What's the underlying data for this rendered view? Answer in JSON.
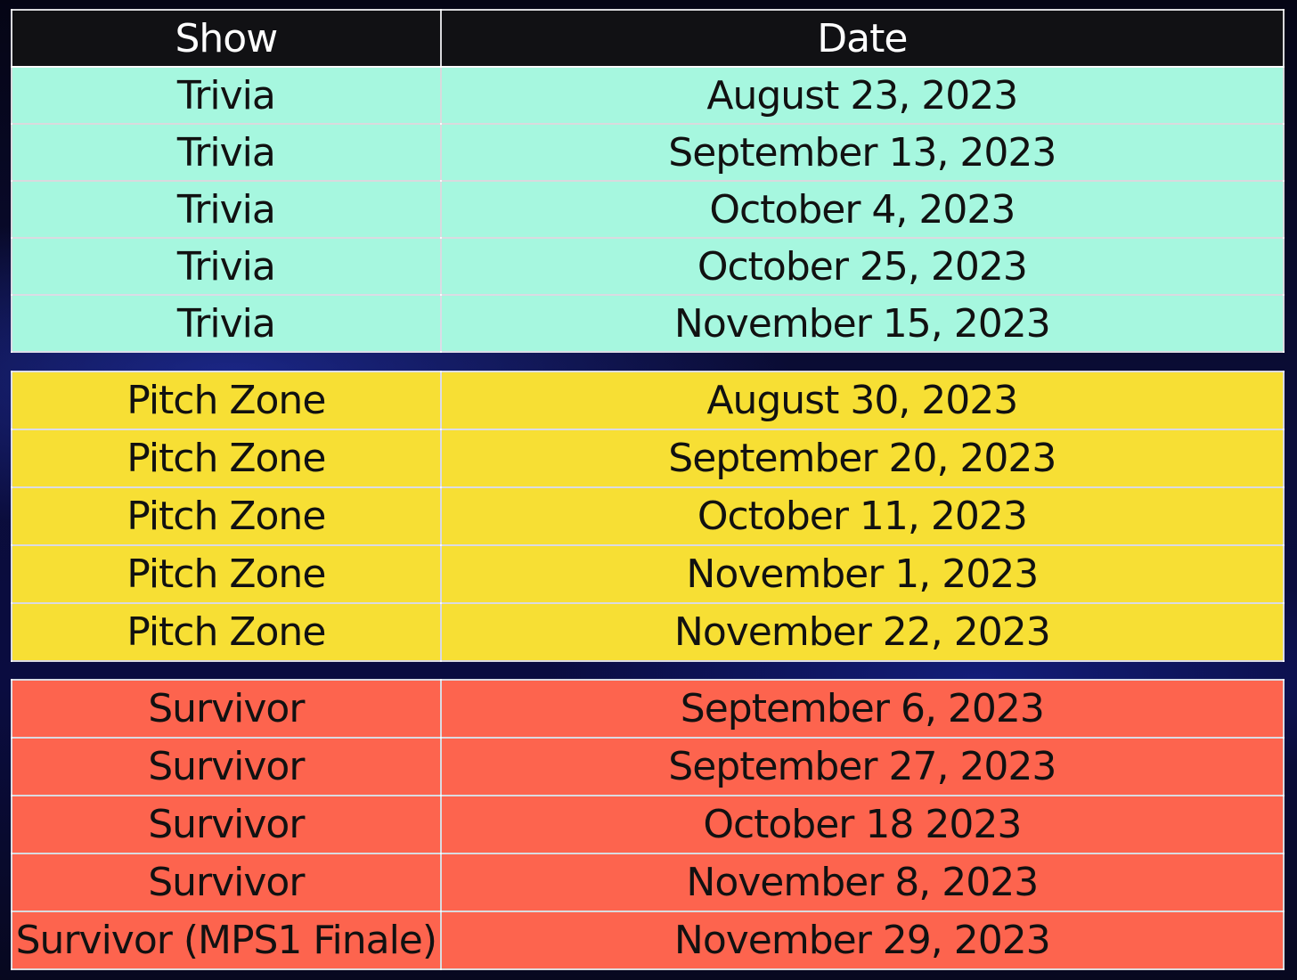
{
  "header": {
    "show_label": "Show",
    "date_label": "Date"
  },
  "groups": {
    "trivia": {
      "color": "#a6f7df",
      "rows": [
        {
          "show": "Trivia",
          "date": "August 23, 2023"
        },
        {
          "show": "Trivia",
          "date": "September 13, 2023"
        },
        {
          "show": "Trivia",
          "date": "October 4, 2023"
        },
        {
          "show": "Trivia",
          "date": "October 25, 2023"
        },
        {
          "show": "Trivia",
          "date": "November 15, 2023"
        }
      ]
    },
    "pitch_zone": {
      "color": "#f7df34",
      "rows": [
        {
          "show": "Pitch Zone",
          "date": "August 30, 2023"
        },
        {
          "show": "Pitch Zone",
          "date": "September 20, 2023"
        },
        {
          "show": "Pitch Zone",
          "date": "October 11, 2023"
        },
        {
          "show": "Pitch Zone",
          "date": "November 1, 2023"
        },
        {
          "show": "Pitch Zone",
          "date": "November 22, 2023"
        }
      ]
    },
    "survivor": {
      "color": "#fd644e",
      "rows": [
        {
          "show": "Survivor",
          "date": "September 6, 2023"
        },
        {
          "show": "Survivor",
          "date": "September 27, 2023"
        },
        {
          "show": "Survivor",
          "date": "October 18 2023"
        },
        {
          "show": "Survivor",
          "date": "November 8, 2023"
        },
        {
          "show": "Survivor (MPS1 Finale)",
          "date": "November 29, 2023"
        }
      ]
    }
  }
}
